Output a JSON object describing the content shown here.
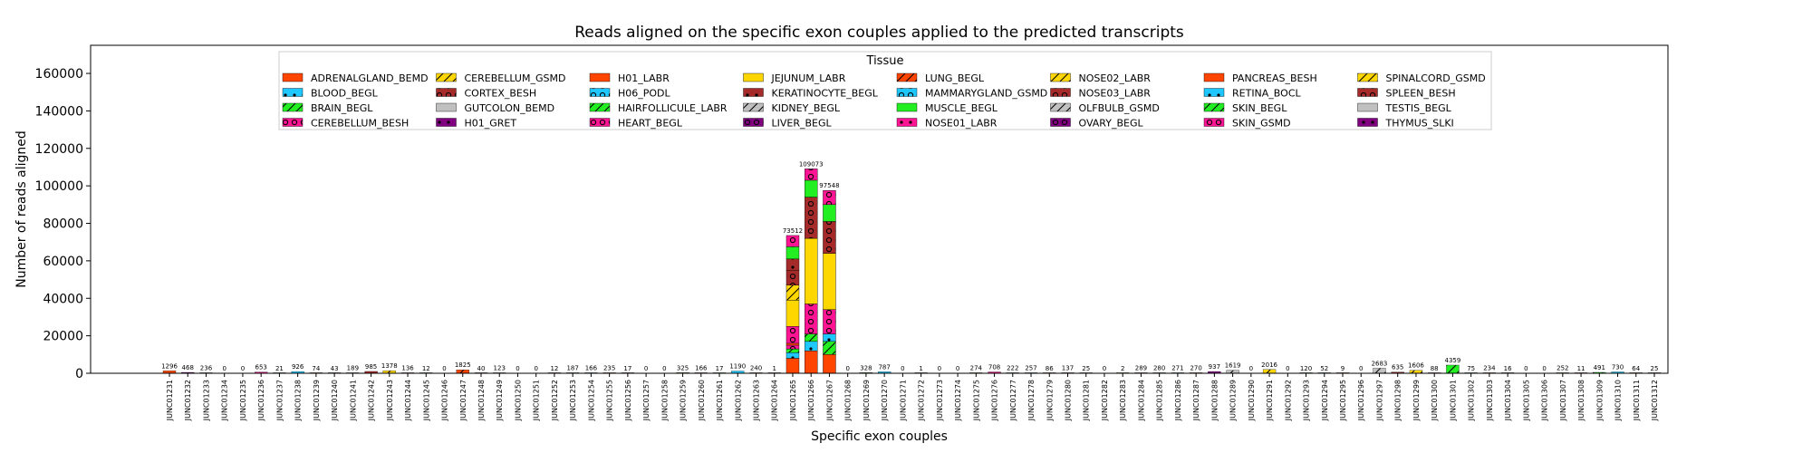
{
  "chart_data": {
    "type": "bar",
    "stacked": true,
    "title": "Reads aligned on the specific exon couples applied to the predicted transcripts",
    "xlabel": "Specific exon couples",
    "ylabel": "Number of reads aligned",
    "ylim": [
      0,
      175000
    ],
    "yticks": [
      0,
      20000,
      40000,
      60000,
      80000,
      100000,
      120000,
      140000,
      160000
    ],
    "ytick_labels": [
      "0",
      "20000",
      "40000",
      "60000",
      "80000",
      "100000",
      "120000",
      "140000",
      "160000"
    ],
    "grid": false,
    "legend": {
      "title": "Tissue",
      "placement": "upper-center",
      "columns": 8
    },
    "categories": [
      "JUNC01231",
      "JUNC01232",
      "JUNC01233",
      "JUNC01234",
      "JUNC01235",
      "JUNC01236",
      "JUNC01237",
      "JUNC01238",
      "JUNC01239",
      "JUNC01240",
      "JUNC01241",
      "JUNC01242",
      "JUNC01243",
      "JUNC01244",
      "JUNC01245",
      "JUNC01246",
      "JUNC01247",
      "JUNC01248",
      "JUNC01249",
      "JUNC01250",
      "JUNC01251",
      "JUNC01252",
      "JUNC01253",
      "JUNC01254",
      "JUNC01255",
      "JUNC01256",
      "JUNC01257",
      "JUNC01258",
      "JUNC01259",
      "JUNC01260",
      "JUNC01261",
      "JUNC01262",
      "JUNC01263",
      "JUNC01264",
      "JUNC01265",
      "JUNC01266",
      "JUNC01267",
      "JUNC01268",
      "JUNC01269",
      "JUNC01270",
      "JUNC01271",
      "JUNC01272",
      "JUNC01273",
      "JUNC01274",
      "JUNC01275",
      "JUNC01276",
      "JUNC01277",
      "JUNC01278",
      "JUNC01279",
      "JUNC01280",
      "JUNC01281",
      "JUNC01282",
      "JUNC01283",
      "JUNC01284",
      "JUNC01285",
      "JUNC01286",
      "JUNC01287",
      "JUNC01288",
      "JUNC01289",
      "JUNC01290",
      "JUNC01291",
      "JUNC01292",
      "JUNC01293",
      "JUNC01294",
      "JUNC01295",
      "JUNC01296",
      "JUNC01297",
      "JUNC01298",
      "JUNC01299",
      "JUNC01300",
      "JUNC01301",
      "JUNC01302",
      "JUNC01303",
      "JUNC01304",
      "JUNC01305",
      "JUNC01306",
      "JUNC01307",
      "JUNC01308",
      "JUNC01309",
      "JUNC01310",
      "JUNC01311",
      "JUNC01312"
    ],
    "totals": [
      1296,
      468,
      236,
      0,
      0,
      653,
      21,
      926,
      74,
      43,
      189,
      985,
      1378,
      136,
      12,
      0,
      1825,
      40,
      123,
      0,
      0,
      12,
      187,
      166,
      235,
      17,
      0,
      0,
      325,
      166,
      17,
      1190,
      240,
      1,
      73512,
      109073,
      97548,
      0,
      328,
      787,
      0,
      1,
      0,
      0,
      274,
      708,
      222,
      257,
      86,
      137,
      25,
      0,
      2,
      289,
      280,
      271,
      270,
      937,
      1619,
      0,
      2016,
      0,
      120,
      52,
      9,
      0,
      2683,
      635,
      1606,
      88,
      4359,
      75,
      234,
      16,
      0,
      0,
      252,
      11,
      491,
      730,
      64,
      25
    ],
    "total_labels": [
      "1296",
      "468",
      "236",
      "0",
      "0",
      "653",
      "21",
      "926",
      "74",
      "43",
      "189",
      "985",
      "1378",
      "136",
      "12",
      "0",
      "1825",
      "40",
      "123",
      "0",
      "0",
      "12",
      "187",
      "166",
      "235",
      "17",
      "0",
      "0",
      "325",
      "166",
      "17",
      "1190",
      "240",
      "1",
      "73512",
      "109073",
      "97548",
      "0",
      "328",
      "787",
      "0",
      "1",
      "0",
      "0",
      "274",
      "708",
      "222",
      "257",
      "86",
      "137",
      "25",
      "0",
      "2",
      "289",
      "280",
      "271",
      "270",
      "937",
      "1619",
      "0",
      "2016",
      "0",
      "120",
      "52",
      "9",
      "0",
      "2683",
      "635",
      "1606",
      "88",
      "4359",
      "75",
      "234",
      "16",
      "0",
      "0",
      "252",
      "11",
      "491",
      "730",
      "64",
      "25"
    ],
    "series": [
      {
        "name": "ADRENALGLAND_BEMD",
        "color": "#ff4500",
        "pattern": "none"
      },
      {
        "name": "BLOOD_BEGL",
        "color": "#1ec8ff",
        "pattern": "dot"
      },
      {
        "name": "BRAIN_BEGL",
        "color": "#22ee22",
        "pattern": "slash"
      },
      {
        "name": "CEREBELLUM_BESH",
        "color": "#ff1493",
        "pattern": "ring"
      },
      {
        "name": "CEREBELLUM_GSMD",
        "color": "#ffd700",
        "pattern": "slash"
      },
      {
        "name": "CORTEX_BESH",
        "color": "#a52a2a",
        "pattern": "ring"
      },
      {
        "name": "GUTCOLON_BEMD",
        "color": "#c0c0c0",
        "pattern": "none"
      },
      {
        "name": "H01_GRET",
        "color": "#800080",
        "pattern": "dot"
      },
      {
        "name": "H01_LABR",
        "color": "#ff4500",
        "pattern": "none"
      },
      {
        "name": "H06_PODL",
        "color": "#1ec8ff",
        "pattern": "ring"
      },
      {
        "name": "HAIRFOLLICULE_LABR",
        "color": "#22ee22",
        "pattern": "slash"
      },
      {
        "name": "HEART_BEGL",
        "color": "#ff1493",
        "pattern": "ring"
      },
      {
        "name": "JEJUNUM_LABR",
        "color": "#ffd700",
        "pattern": "none"
      },
      {
        "name": "KERATINOCYTE_BEGL",
        "color": "#a52a2a",
        "pattern": "dot"
      },
      {
        "name": "KIDNEY_BEGL",
        "color": "#c0c0c0",
        "pattern": "slash"
      },
      {
        "name": "LIVER_BEGL",
        "color": "#800080",
        "pattern": "ring"
      },
      {
        "name": "LUNG_BEGL",
        "color": "#ff4500",
        "pattern": "slash"
      },
      {
        "name": "MAMMARYGLAND_GSMD",
        "color": "#1ec8ff",
        "pattern": "ring"
      },
      {
        "name": "MUSCLE_BEGL",
        "color": "#22ee22",
        "pattern": "none"
      },
      {
        "name": "NOSE01_LABR",
        "color": "#ff1493",
        "pattern": "dot"
      },
      {
        "name": "NOSE02_LABR",
        "color": "#ffd700",
        "pattern": "slash"
      },
      {
        "name": "NOSE03_LABR",
        "color": "#a52a2a",
        "pattern": "ring"
      },
      {
        "name": "OLFBULB_GSMD",
        "color": "#c0c0c0",
        "pattern": "slash"
      },
      {
        "name": "OVARY_BEGL",
        "color": "#800080",
        "pattern": "ring"
      },
      {
        "name": "PANCREAS_BESH",
        "color": "#ff4500",
        "pattern": "none"
      },
      {
        "name": "RETINA_BOCL",
        "color": "#1ec8ff",
        "pattern": "dot"
      },
      {
        "name": "SKIN_BEGL",
        "color": "#22ee22",
        "pattern": "slash"
      },
      {
        "name": "SKIN_GSMD",
        "color": "#ff1493",
        "pattern": "ring"
      },
      {
        "name": "SPINALCORD_GSMD",
        "color": "#ffd700",
        "pattern": "slash"
      },
      {
        "name": "SPLEEN_BESH",
        "color": "#a52a2a",
        "pattern": "ring"
      },
      {
        "name": "TESTIS_BEGL",
        "color": "#c0c0c0",
        "pattern": "none"
      },
      {
        "name": "THYMUS_SLKI",
        "color": "#800080",
        "pattern": "dot"
      }
    ],
    "stack_breakdown": {
      "JUNC01265": [
        {
          "series": "ADRENALGLAND_BEMD",
          "value": 8000
        },
        {
          "series": "BLOOD_BEGL",
          "value": 3000
        },
        {
          "series": "BRAIN_BEGL",
          "value": 2000
        },
        {
          "series": "CEREBELLUM_BESH",
          "value": 2000
        },
        {
          "series": "H01_LABR",
          "value": 1000
        },
        {
          "series": "HEART_BEGL",
          "value": 9000
        },
        {
          "series": "JEJUNUM_LABR",
          "value": 14000
        },
        {
          "series": "NOSE02_LABR",
          "value": 8000
        },
        {
          "series": "CORTEX_BESH",
          "value": 8000
        },
        {
          "series": "KERATINOCYTE_BEGL",
          "value": 6000
        },
        {
          "series": "MUSCLE_BEGL",
          "value": 6500
        },
        {
          "series": "SKIN_GSMD",
          "value": 6012
        }
      ],
      "JUNC01266": [
        {
          "series": "ADRENALGLAND_BEMD",
          "value": 12000
        },
        {
          "series": "BLOOD_BEGL",
          "value": 5000
        },
        {
          "series": "BRAIN_BEGL",
          "value": 4000
        },
        {
          "series": "CEREBELLUM_BESH",
          "value": 16000
        },
        {
          "series": "JEJUNUM_LABR",
          "value": 35000
        },
        {
          "series": "CORTEX_BESH",
          "value": 22000
        },
        {
          "series": "MUSCLE_BEGL",
          "value": 9000
        },
        {
          "series": "SKIN_GSMD",
          "value": 6073
        }
      ],
      "JUNC01267": [
        {
          "series": "ADRENALGLAND_BEMD",
          "value": 10000
        },
        {
          "series": "BRAIN_BEGL",
          "value": 7000
        },
        {
          "series": "BLOOD_BEGL",
          "value": 4000
        },
        {
          "series": "CEREBELLUM_BESH",
          "value": 13000
        },
        {
          "series": "JEJUNUM_LABR",
          "value": 30000
        },
        {
          "series": "CORTEX_BESH",
          "value": 17000
        },
        {
          "series": "MUSCLE_BEGL",
          "value": 9000
        },
        {
          "series": "SKIN_GSMD",
          "value": 7548
        }
      ]
    }
  }
}
